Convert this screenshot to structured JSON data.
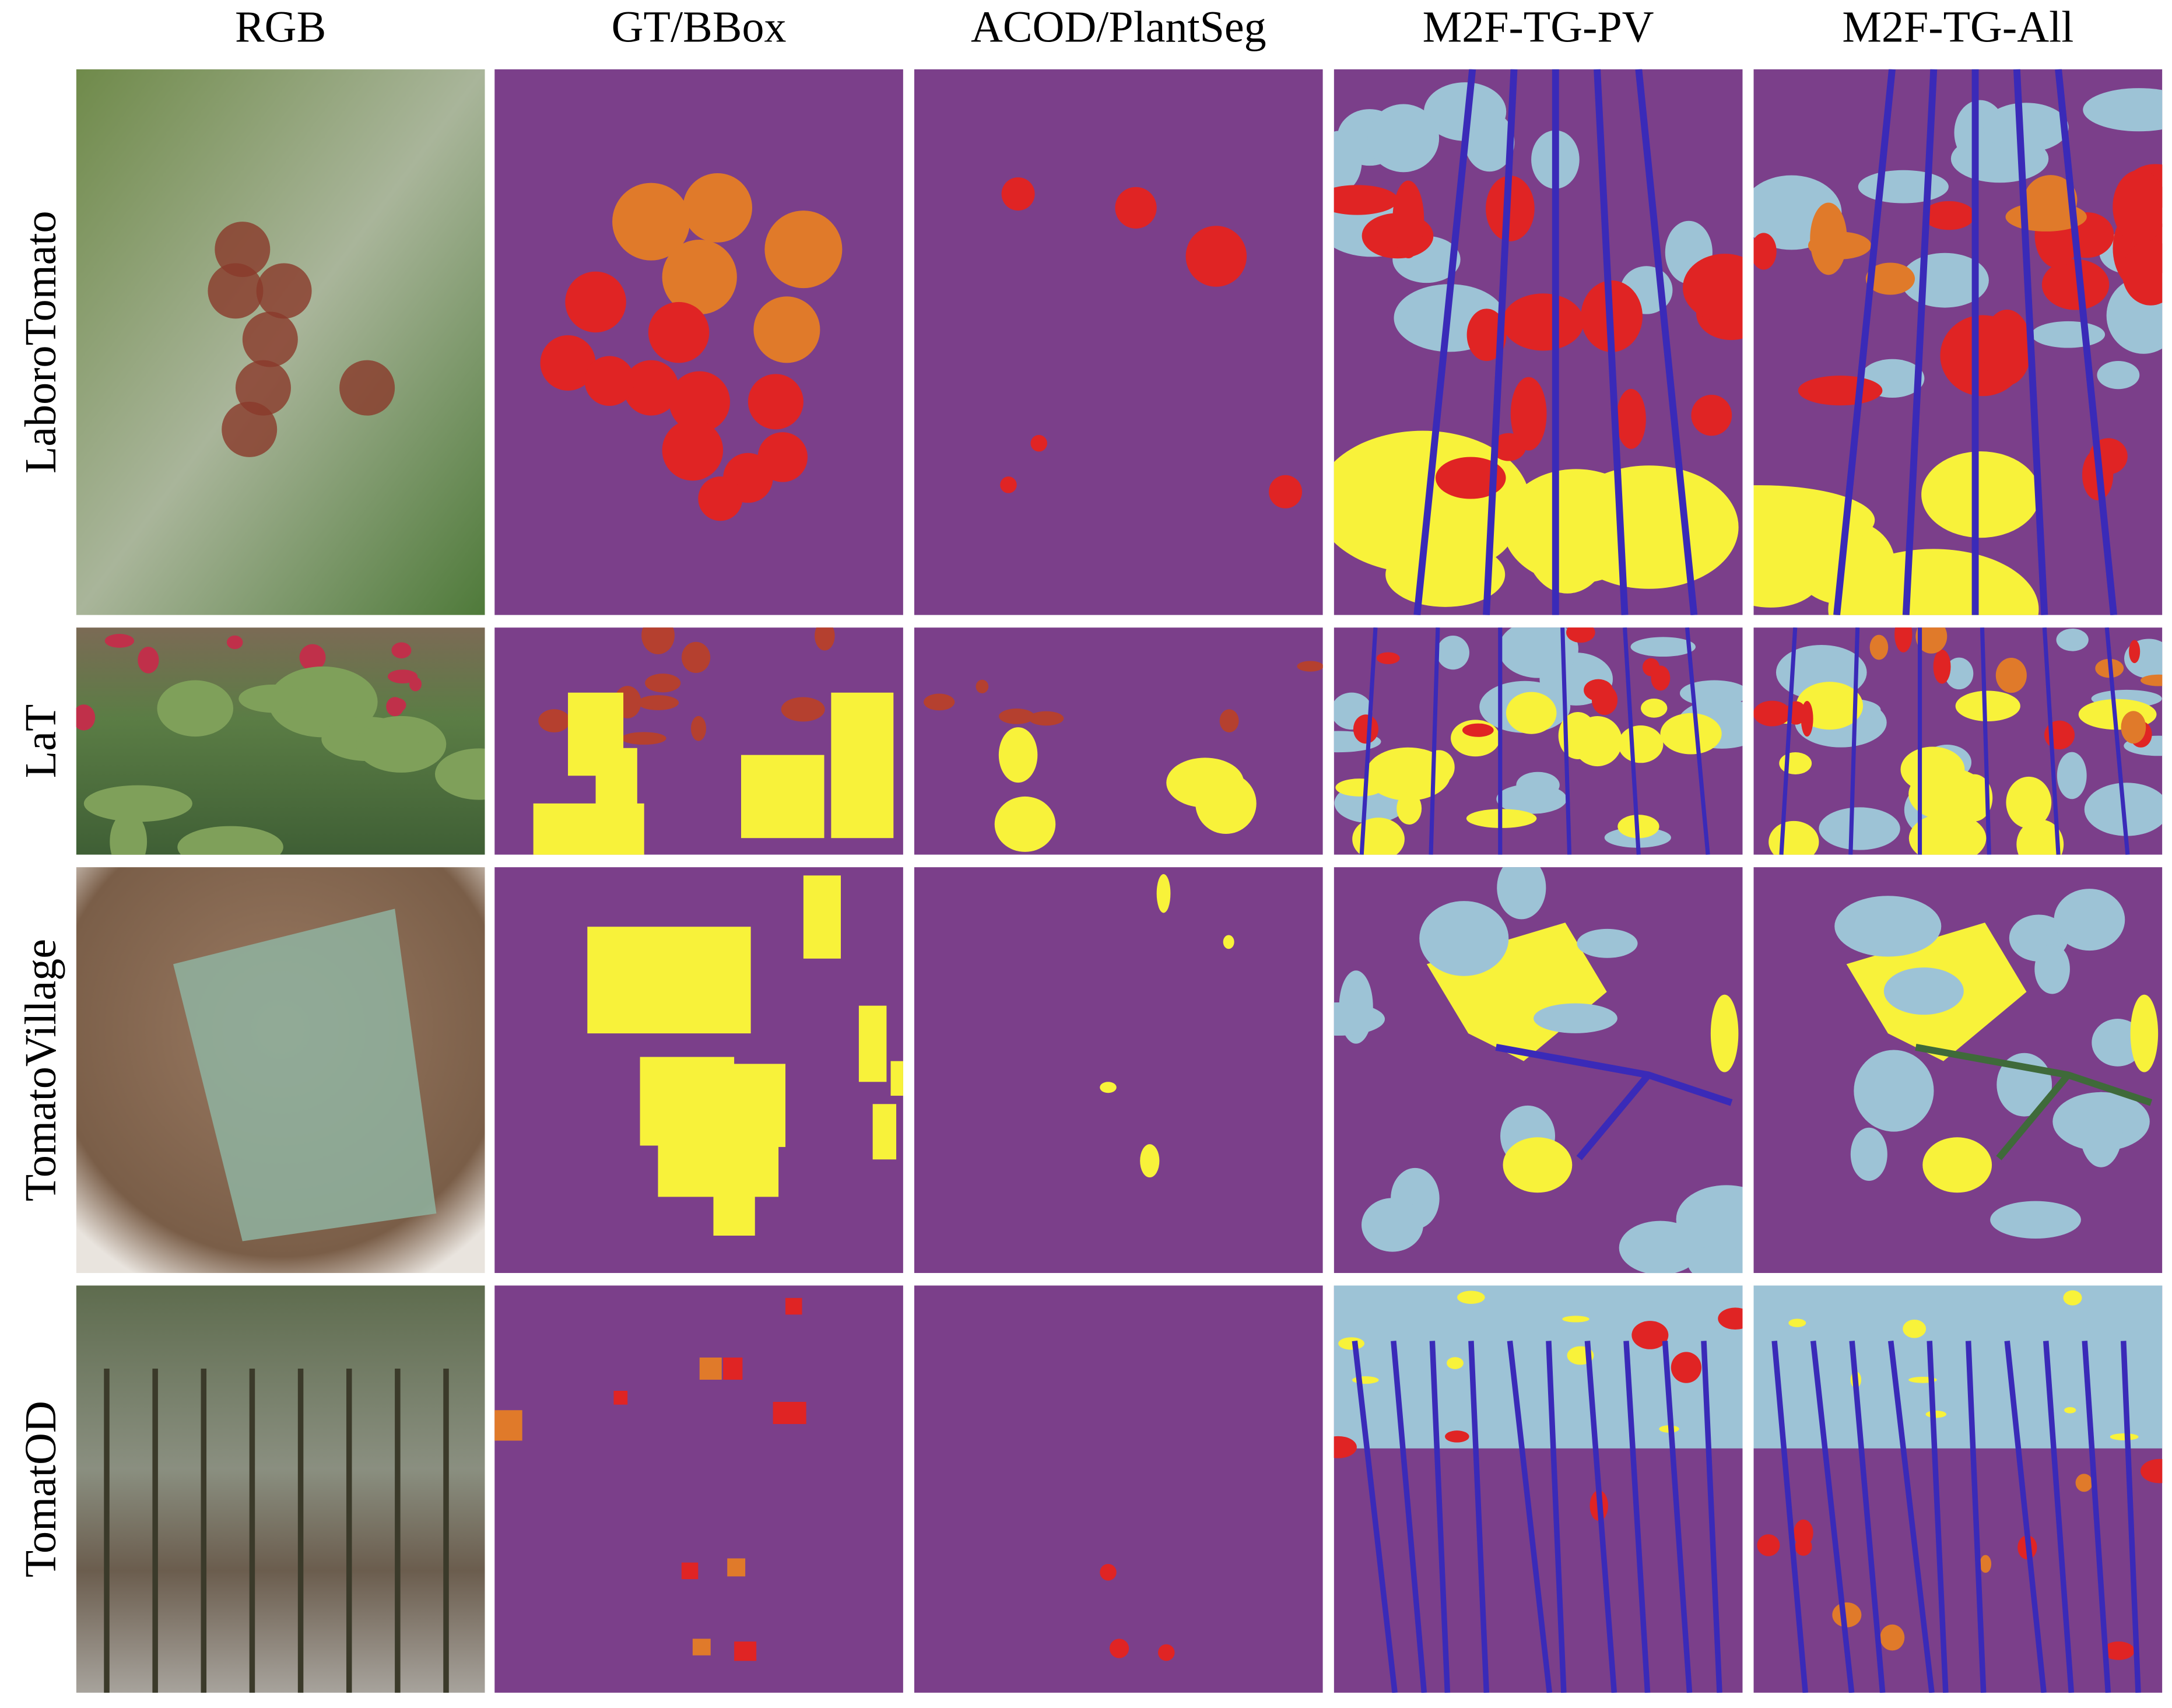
{
  "columns": [
    "RGB",
    "GT/BBox",
    "ACOD/PlantSeg",
    "M2F-TG-PV",
    "M2F-TG-All"
  ],
  "rows": [
    "LaboroTomato",
    "LaT",
    "TomatoVillage",
    "TomatOD"
  ]
}
